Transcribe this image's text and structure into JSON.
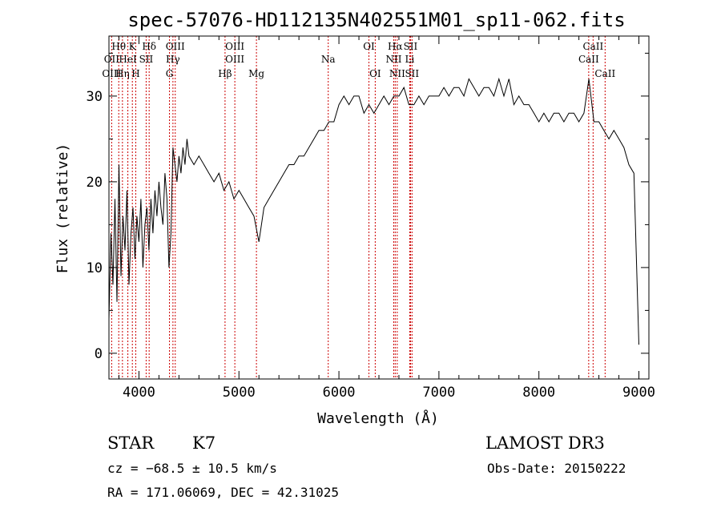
{
  "chart_data": {
    "type": "line",
    "title": "spec-57076-HD112135N402551M01_sp11-062.fits",
    "xlabel": "Wavelength (Å)",
    "ylabel": "Flux (relative)",
    "xlim": [
      3700,
      9100
    ],
    "ylim": [
      -3,
      37
    ],
    "x_ticks": [
      4000,
      5000,
      6000,
      7000,
      8000,
      9000
    ],
    "y_ticks": [
      0,
      10,
      20,
      30
    ],
    "grid": false,
    "series": [
      {
        "x": [
          3700,
          3720,
          3740,
          3760,
          3780,
          3800,
          3820,
          3840,
          3860,
          3880,
          3900,
          3920,
          3940,
          3960,
          3980,
          4000,
          4020,
          4040,
          4060,
          4080,
          4100,
          4120,
          4140,
          4160,
          4180,
          4200,
          4220,
          4240,
          4260,
          4280,
          4300,
          4320,
          4340,
          4360,
          4380,
          4400,
          4420,
          4440,
          4460,
          4480,
          4500,
          4550,
          4600,
          4650,
          4700,
          4750,
          4800,
          4850,
          4900,
          4950,
          5000,
          5050,
          5100,
          5150,
          5200,
          5250,
          5300,
          5350,
          5400,
          5450,
          5500,
          5550,
          5600,
          5650,
          5700,
          5750,
          5800,
          5850,
          5900,
          5950,
          6000,
          6050,
          6100,
          6150,
          6200,
          6250,
          6300,
          6350,
          6400,
          6450,
          6500,
          6550,
          6600,
          6650,
          6700,
          6750,
          6800,
          6850,
          6900,
          6950,
          7000,
          7050,
          7100,
          7150,
          7200,
          7250,
          7300,
          7350,
          7400,
          7450,
          7500,
          7550,
          7600,
          7650,
          7700,
          7750,
          7800,
          7850,
          7900,
          7950,
          8000,
          8050,
          8100,
          8150,
          8200,
          8250,
          8300,
          8350,
          8400,
          8450,
          8500,
          8550,
          8600,
          8650,
          8700,
          8750,
          8800,
          8850,
          8900,
          8950,
          9000
        ],
        "y": [
          4,
          14,
          8,
          18,
          6,
          22,
          9,
          16,
          12,
          19,
          8,
          14,
          17,
          11,
          16,
          13,
          18,
          10,
          15,
          17,
          12,
          18,
          14,
          19,
          16,
          20,
          17,
          15,
          21,
          18,
          10,
          14,
          24,
          22,
          20,
          23,
          21,
          24,
          22,
          25,
          23,
          22,
          23,
          22,
          21,
          20,
          21,
          19,
          20,
          18,
          19,
          18,
          17,
          16,
          13,
          17,
          18,
          19,
          20,
          21,
          22,
          22,
          23,
          23,
          24,
          25,
          26,
          26,
          27,
          27,
          29,
          30,
          29,
          30,
          30,
          28,
          29,
          28,
          29,
          30,
          29,
          30,
          30,
          31,
          29,
          29,
          30,
          29,
          30,
          30,
          30,
          31,
          30,
          31,
          31,
          30,
          32,
          31,
          30,
          31,
          31,
          30,
          32,
          30,
          32,
          29,
          30,
          29,
          29,
          28,
          27,
          28,
          27,
          28,
          28,
          27,
          28,
          28,
          27,
          28,
          32,
          27,
          27,
          26,
          25,
          26,
          25,
          24,
          22,
          21,
          1
        ]
      }
    ],
    "line_labels": [
      {
        "label": "Hθ",
        "wavelength": 3798,
        "row": 1
      },
      {
        "label": "OII",
        "wavelength": 3727,
        "row": 2
      },
      {
        "label": "OIII",
        "wavelength": 3727,
        "row": 3
      },
      {
        "label": "K",
        "wavelength": 3934,
        "row": 1
      },
      {
        "label": "HeI",
        "wavelength": 3889,
        "row": 2
      },
      {
        "label": "Hη",
        "wavelength": 3835,
        "row": 3
      },
      {
        "label": "H",
        "wavelength": 3968,
        "row": 3
      },
      {
        "label": "Hδ",
        "wavelength": 4102,
        "row": 1
      },
      {
        "label": "SII",
        "wavelength": 4072,
        "row": 2
      },
      {
        "label": "OIII",
        "wavelength": 4363,
        "row": 1
      },
      {
        "label": "Hγ",
        "wavelength": 4340,
        "row": 2
      },
      {
        "label": "G",
        "wavelength": 4305,
        "row": 3
      },
      {
        "label": "OIII",
        "wavelength": 4959,
        "row": 1
      },
      {
        "label": "OIII",
        "wavelength": 4959,
        "row": 2
      },
      {
        "label": "Hβ",
        "wavelength": 4861,
        "row": 3
      },
      {
        "label": "Mg",
        "wavelength": 5175,
        "row": 3
      },
      {
        "label": "Na",
        "wavelength": 5893,
        "row": 2
      },
      {
        "label": "OI",
        "wavelength": 6300,
        "row": 1
      },
      {
        "label": "OI",
        "wavelength": 6363,
        "row": 3
      },
      {
        "label": "Hα",
        "wavelength": 6563,
        "row": 1
      },
      {
        "label": "SII",
        "wavelength": 6716,
        "row": 1
      },
      {
        "label": "NII",
        "wavelength": 6548,
        "row": 2
      },
      {
        "label": "Li",
        "wavelength": 6708,
        "row": 2
      },
      {
        "label": "NII",
        "wavelength": 6583,
        "row": 3
      },
      {
        "label": "SII",
        "wavelength": 6731,
        "row": 3
      },
      {
        "label": "CaII",
        "wavelength": 8542,
        "row": 1
      },
      {
        "label": "CaII",
        "wavelength": 8498,
        "row": 2
      },
      {
        "label": "CaII",
        "wavelength": 8662,
        "row": 3
      }
    ],
    "line_color": "#000000",
    "marker_color": "#cc0000"
  },
  "info": {
    "object_class": "STAR",
    "subclass": "K7",
    "survey": "LAMOST DR3",
    "redshift": "cz = −68.5 ± 10.5 km/s",
    "obs_date": "Obs-Date: 20150222",
    "coords": "RA = 171.06069, DEC =  42.31025"
  }
}
